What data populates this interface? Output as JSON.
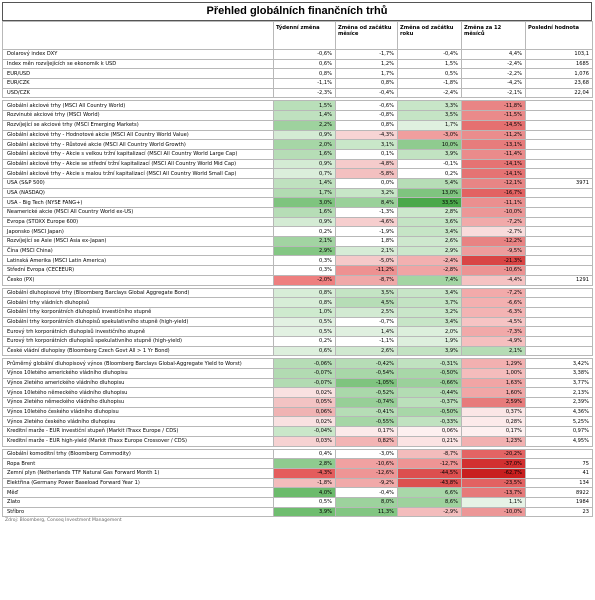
{
  "title": "Přehled globálních finančních trhů",
  "headers": [
    "",
    "Týdenní změna",
    "Změna od začátku měsíce",
    "Změna od začátku roku",
    "Změna za 12 měsíců",
    "Poslední hodnota"
  ],
  "rows": [
    {
      "name": "Dolarový index DXY",
      "v": [
        "-0,6%",
        "-1,7%",
        "-0,4%",
        "4,4%",
        "103,1"
      ],
      "c": [
        null,
        null,
        null,
        null,
        null
      ]
    },
    {
      "name": "Index měn rozvíjejících se ekonomik k USD",
      "v": [
        "0,6%",
        "1,2%",
        "1,5%",
        "-2,4%",
        "1685"
      ],
      "c": [
        null,
        null,
        null,
        null,
        null
      ]
    },
    {
      "name": "EUR/USD",
      "v": [
        "0,8%",
        "1,7%",
        "0,5%",
        "-2,2%",
        "1,076"
      ],
      "c": [
        null,
        null,
        null,
        null,
        null
      ]
    },
    {
      "name": "EUR/CZK",
      "v": [
        "-1,1%",
        "0,8%",
        "-1,8%",
        "-4,2%",
        "23,68"
      ],
      "c": [
        null,
        null,
        null,
        null,
        null
      ]
    },
    {
      "name": "USD/CZK",
      "v": [
        "-2,3%",
        "-0,4%",
        "-2,4%",
        "-2,1%",
        "22,04"
      ],
      "c": [
        null,
        null,
        null,
        null,
        null
      ]
    },
    {
      "sp": true
    },
    {
      "name": "Globální akciové trhy (MSCI All Country World)",
      "v": [
        "1,5%",
        "-0,6%",
        "3,3%",
        "-11,8%",
        ""
      ],
      "c": [
        "#b9dfb9",
        null,
        "#c8e6c8",
        "#e98585",
        null
      ]
    },
    {
      "name": "Rozvinuté akciové trhy (MSCI World)",
      "v": [
        "1,4%",
        "-0,8%",
        "3,5%",
        "-11,5%",
        ""
      ],
      "c": [
        "#bfe1bf",
        null,
        "#c5e4c5",
        "#ea8a8a",
        null
      ]
    },
    {
      "name": "Rozvíjející se akciové trhy (MSCI Emerging Markets)",
      "v": [
        "2,2%",
        "0,8%",
        "1,7%",
        "-14,5%",
        ""
      ],
      "c": [
        "#9ed29e",
        null,
        "#dff0df",
        "#e57070",
        null
      ]
    },
    {
      "name": "Globální akciové trhy - Hodnotové akcie (MSCI All Country World Value)",
      "v": [
        "0,9%",
        "-4,3%",
        "-3,0%",
        "-11,2%",
        ""
      ],
      "c": [
        "#d4ebd4",
        "#f7d4d4",
        "#f09e9e",
        "#ea8d8d",
        null
      ]
    },
    {
      "name": "Globální akciové trhy - Růstové akcie (MSCI All Country World Growth)",
      "v": [
        "2,0%",
        "3,1%",
        "10,0%",
        "-13,1%",
        ""
      ],
      "c": [
        "#a6d6a6",
        "#c9e7c9",
        "#8fcb8f",
        "#e77c7c",
        null
      ]
    },
    {
      "name": "Globální akciové trhy - Akcie s velkou tržní kapitalizací (MSCI All Country World Large Cap)",
      "v": [
        "1,6%",
        "0,1%",
        "3,9%",
        "-11,4%",
        ""
      ],
      "c": [
        "#b6ddb6",
        null,
        "#c2e3c2",
        "#ea8b8b",
        null
      ]
    },
    {
      "name": "Globální akciové trhy - Akcie se střední tržní kapitalizací (MSCI All Country World Mid Cap)",
      "v": [
        "0,9%",
        "-4,8%",
        "-0,1%",
        "-14,1%",
        ""
      ],
      "c": [
        "#d4ebd4",
        "#f5cbcb",
        null,
        "#e57373",
        null
      ]
    },
    {
      "name": "Globální akciové trhy - Akcie s malou tržní kapitalizací (MSCI All Country World Small Cap)",
      "v": [
        "0,7%",
        "-5,8%",
        "0,2%",
        "-14,1%",
        ""
      ],
      "c": [
        "#dbeedb",
        "#f3c0c0",
        null,
        "#e57373",
        null
      ]
    },
    {
      "name": "USA (S&P 500)",
      "v": [
        "1,4%",
        "0,0%",
        "5,4%",
        "-12,1%",
        "3971"
      ],
      "c": [
        "#bfe1bf",
        null,
        "#b6ddb6",
        "#e88585",
        null
      ]
    },
    {
      "name": "USA (NASDAQ)",
      "v": [
        "1,7%",
        "3,2%",
        "13,0%",
        "-16,7%",
        ""
      ],
      "c": [
        "#b2dbb2",
        "#c7e6c7",
        "#7fc47f",
        "#e26262",
        null
      ]
    },
    {
      "name": "USA - Big Tech (NYSE FANG+)",
      "v": [
        "3,0%",
        "8,4%",
        "33,5%",
        "-11,1%",
        ""
      ],
      "c": [
        "#7fc47f",
        "#9ad19a",
        "#4aa84a",
        "#eb8f8f",
        null
      ]
    },
    {
      "name": "Neamerické akcie (MSCI All Country World ex-US)",
      "v": [
        "1,6%",
        "-1,3%",
        "2,8%",
        "-10,0%",
        ""
      ],
      "c": [
        "#b6ddb6",
        null,
        "#cce8cc",
        "#ec9797",
        null
      ]
    },
    {
      "name": "Evropa (STOXX Europe 600)",
      "v": [
        "0,9%",
        "-4,6%",
        "3,6%",
        "-7,2%",
        ""
      ],
      "c": [
        "#d4ebd4",
        "#f6cece",
        "#c4e4c4",
        "#f1aaaa",
        null
      ]
    },
    {
      "name": "Japonsko (MSCI Japan)",
      "v": [
        "0,2%",
        "-1,9%",
        "3,4%",
        "-2,7%",
        ""
      ],
      "c": [
        null,
        null,
        "#c6e5c6",
        "#f9dcdc",
        null
      ]
    },
    {
      "name": "Rozvíjející se Asie (MSCI Asia ex-Japan)",
      "v": [
        "2,1%",
        "1,8%",
        "2,6%",
        "-12,2%",
        ""
      ],
      "c": [
        "#a2d4a2",
        null,
        "#cee8ce",
        "#e88383",
        null
      ]
    },
    {
      "name": "Čína (MSCI China)",
      "v": [
        "2,9%",
        "2,1%",
        "2,9%",
        "-9,5%",
        ""
      ],
      "c": [
        "#84c784",
        "#d6ecd6",
        "#cbe7cb",
        "#ed9c9c",
        null
      ]
    },
    {
      "name": "Latinská Amerika (MSCI Latin America)",
      "v": [
        "0,3%",
        "-5,0%",
        "-2,4%",
        "-21,3%",
        ""
      ],
      "c": [
        null,
        "#f5c9c9",
        "#f2b0b0",
        "#d94545",
        null
      ]
    },
    {
      "name": "Střední Evropa (CECEEUR)",
      "v": [
        "0,3%",
        "-11,2%",
        "-2,8%",
        "-10,6%",
        ""
      ],
      "c": [
        null,
        "#ee9191",
        "#f0a4a4",
        "#ec9393",
        null
      ]
    },
    {
      "name": "Česko (PX)",
      "v": [
        "-2,0%",
        "-8,7%",
        "7,4%",
        "-4,4%",
        "1291"
      ],
      "c": [
        "#ee7f7f",
        "#f0a8a8",
        "#a3d5a3",
        "#f5c3c3",
        null
      ]
    },
    {
      "sp": true
    },
    {
      "name": "Globální dluhopisové trhy (Bloomberg Barclays Global Aggregate Bond)",
      "v": [
        "0,8%",
        "3,5%",
        "3,4%",
        "-7,2%",
        ""
      ],
      "c": [
        "#d7edd7",
        "#c4e4c4",
        "#c7e5c7",
        "#f2aaaa",
        null
      ]
    },
    {
      "name": "Globální trhy vládních dluhopisů",
      "v": [
        "0,8%",
        "4,5%",
        "3,7%",
        "-6,6%",
        ""
      ],
      "c": [
        "#d7edd7",
        "#b6ddb6",
        "#c3e3c3",
        "#f3b0b0",
        null
      ]
    },
    {
      "name": "Globální trhy korporátních dluhopisů investičního stupně",
      "v": [
        "1,0%",
        "2,5%",
        "3,2%",
        "-6,3%",
        ""
      ],
      "c": [
        "#ceeace",
        "#d2ead2",
        "#c9e6c9",
        "#f3b3b3",
        null
      ]
    },
    {
      "name": "Globální trhy korporátních dluhopisů spekulativního stupně (high-yield)",
      "v": [
        "0,5%",
        "-0,7%",
        "3,4%",
        "-4,5%",
        ""
      ],
      "c": [
        "#e2f1e2",
        null,
        "#c7e5c7",
        "#f6c4c4",
        null
      ]
    },
    {
      "name": "Eurový trh korporátních dluhopisů investičního stupně",
      "v": [
        "0,5%",
        "1,4%",
        "2,0%",
        "-7,3%",
        ""
      ],
      "c": [
        "#e2f1e2",
        "#e0f0e0",
        "#dcefdc",
        "#f1a9a9",
        null
      ]
    },
    {
      "name": "Eurový trh korporátních dluhopisů spekulativního stupně (high-yield)",
      "v": [
        "0,2%",
        "-1,1%",
        "1,9%",
        "-4,9%",
        ""
      ],
      "c": [
        null,
        null,
        "#ddefdd",
        "#f5bfbf",
        null
      ]
    },
    {
      "name": "České vládní dluhopisy (Bloomberg Czech Govt All > 1 Yr Bond)",
      "v": [
        "0,6%",
        "2,6%",
        "3,9%",
        "2,1%",
        ""
      ],
      "c": [
        "#ddefdd",
        "#d0e9d0",
        "#c2e3c2",
        "#b5dcb5",
        null
      ]
    },
    {
      "sp": true
    },
    {
      "name": "Průměrný globální dluhopisový výnos (Bloomberg Barclays Global-Aggregate Yield to Worst)",
      "v": [
        "-0,06%",
        "-0,42%",
        "-0,31%",
        "1,29%",
        "3,42%"
      ],
      "c": [
        "#b6ddb6",
        "#b6ddb6",
        "#c0e2c0",
        "#f2b0b0",
        null
      ]
    },
    {
      "name": "Výnos 10letého amerického vládního dluhopisu",
      "v": [
        "-0,07%",
        "-0,54%",
        "-0,50%",
        "1,00%",
        "3,38%"
      ],
      "c": [
        "#b2dbb2",
        "#a8d7a8",
        "#a8d7a8",
        "#f4bcbc",
        null
      ]
    },
    {
      "name": "Výnos 2letého amerického vládního dluhopisu",
      "v": [
        "-0,07%",
        "-1,05%",
        "-0,66%",
        "1,63%",
        "3,77%"
      ],
      "c": [
        "#b2dbb2",
        "#7fc47f",
        "#9bd19b",
        "#f1a5a5",
        null
      ]
    },
    {
      "name": "Výnos 10letého německého vládního dluhopisu",
      "v": [
        "0,02%",
        "-0,52%",
        "-0,44%",
        "1,60%",
        "2,13%"
      ],
      "c": [
        "#f9e1e1",
        "#aad8aa",
        "#b3dcb3",
        "#f1a6a6",
        null
      ]
    },
    {
      "name": "Výnos 2letého německého vládního dluhopisu",
      "v": [
        "0,05%",
        "-0,74%",
        "-0,37%",
        "2,59%",
        "2,39%"
      ],
      "c": [
        "#f3c3c3",
        "#97cf97",
        "#bbe0bb",
        "#e77b7b",
        null
      ]
    },
    {
      "name": "Výnos 10letého českého vládního dluhopisu",
      "v": [
        "0,06%",
        "-0,41%",
        "-0,50%",
        "0,37%",
        "4,36%"
      ],
      "c": [
        "#f0b3b3",
        "#b6ddb6",
        "#a8d7a8",
        "#fbe6e6",
        null
      ]
    },
    {
      "name": "Výnos 2letého českého vládního dluhopisu",
      "v": [
        "0,02%",
        "-0,55%",
        "-0,33%",
        "0,28%",
        "5,25%"
      ],
      "c": [
        "#f9e1e1",
        "#a6d6a6",
        "#c0e2c0",
        "#fceaea",
        null
      ]
    },
    {
      "name": "Kreditní marže - EUR investiční stupeň (Markit iTraxx Europe / CDS)",
      "v": [
        "-0,04%",
        "0,17%",
        "0,06%",
        "0,17%",
        "0,97%"
      ],
      "c": [
        "#c9e7c9",
        "#fceaea",
        "#fdf0f0",
        "#fdf0f0",
        null
      ]
    },
    {
      "name": "Kreditní marže - EUR high-yield (Markit iTraxx Europe Crossover / CDS)",
      "v": [
        "0,03%",
        "0,82%",
        "0,21%",
        "1,23%",
        "4,95%"
      ],
      "c": [
        "#f6d2d2",
        "#f3b4b4",
        "#fbe3e3",
        "#f2b1b1",
        null
      ]
    },
    {
      "sp": true
    },
    {
      "name": "Globální komoditní trhy (Bloomberg Commodity)",
      "v": [
        "0,4%",
        "-3,0%",
        "-8,7%",
        "-20,2%",
        ""
      ],
      "c": [
        null,
        null,
        "#f3bcbc",
        "#e36464",
        null
      ]
    },
    {
      "name": "Ropa Brent",
      "v": [
        "2,8%",
        "-10,6%",
        "-12,7%",
        "-37,0%",
        "75"
      ],
      "c": [
        "#8fcb8f",
        "#f0a1a1",
        "#ee9494",
        "#d23030",
        null
      ]
    },
    {
      "name": "Zemní plyn (Netherlands TTF Natural Gas Forward Month 1)",
      "v": [
        "-4,3%",
        "-12,6%",
        "-44,5%",
        "-62,7%",
        "41"
      ],
      "c": [
        "#e45c5c",
        "#ee9595",
        "#dc4f4f",
        "#c81f1f",
        null
      ]
    },
    {
      "name": "Elektřina (Germany Power Baseload Forward Year 1)",
      "v": [
        "-1,8%",
        "-9,2%",
        "-43,8%",
        "-23,5%",
        "134"
      ],
      "c": [
        "#f3bcbc",
        "#f1a9a9",
        "#dc5050",
        "#e26262",
        null
      ]
    },
    {
      "name": "Měď",
      "v": [
        "4,0%",
        "-0,4%",
        "6,6%",
        "-13,7%",
        "8922"
      ],
      "c": [
        "#6cbb6c",
        null,
        "#a9d7a9",
        "#e67a7a",
        null
      ]
    },
    {
      "name": "Zlato",
      "v": [
        "0,5%",
        "8,0%",
        "8,6%",
        "1,1%",
        "1984"
      ],
      "c": [
        null,
        "#9dd29d",
        "#9dd29d",
        "#e6f3e6",
        null
      ]
    },
    {
      "name": "Stříbro",
      "v": [
        "3,9%",
        "11,3%",
        "-2,9%",
        "-10,0%",
        "23"
      ],
      "c": [
        "#6fbd6f",
        "#82c682",
        "#f3bcbc",
        "#ec9797",
        null
      ]
    }
  ],
  "footer": "Zdroj: Bloomberg, Conseq Investment Management"
}
